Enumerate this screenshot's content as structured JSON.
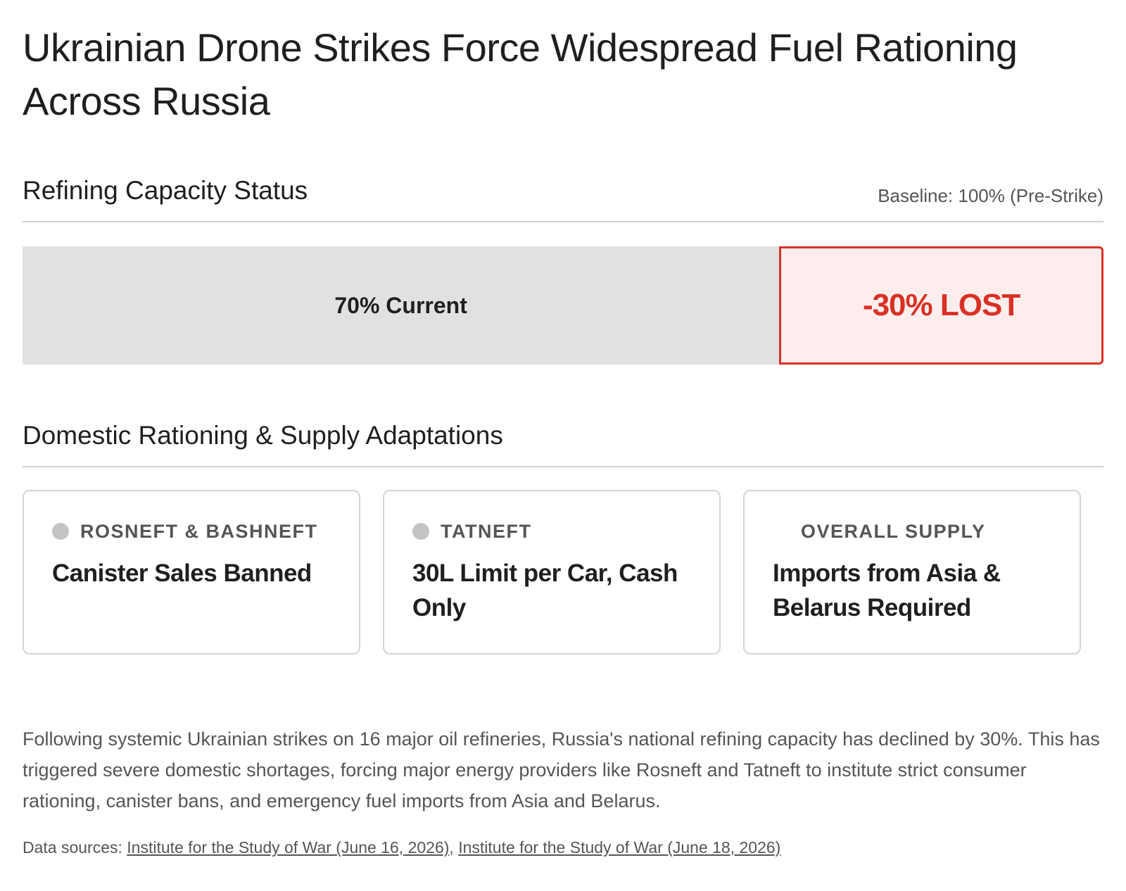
{
  "title": "Ukrainian Drone Strikes Force Widespread Fuel Rationing Across Russia",
  "capacity": {
    "heading": "Refining Capacity Status",
    "baseline": "Baseline: 100% (Pre-Strike)",
    "current_pct": 70,
    "lost_pct": 30,
    "current_label": "70% Current",
    "lost_label": "-30% LOST",
    "colors": {
      "current": "#e1e1e1",
      "lost_fill": "#fdeeed",
      "lost_accent": "#d93025"
    }
  },
  "rationing": {
    "heading": "Domestic Rationing & Supply Adaptations",
    "cards": [
      {
        "label": "ROSNEFT & BASHNEFT",
        "value": "Canister Sales Banned",
        "dot_icon": "status-dot-icon"
      },
      {
        "label": "TATNEFT",
        "value": "30L Limit per Car, Cash Only",
        "dot_icon": "status-dot-icon"
      },
      {
        "label": "OVERALL SUPPLY",
        "value": "Imports from Asia & Belarus Required",
        "dot_icon": ""
      }
    ]
  },
  "summary": "Following systemic Ukrainian strikes on 16 major oil refineries, Russia's national refining capacity has declined by 30%. This has triggered severe domestic shortages, forcing major energy providers like Rosneft and Tatneft to institute strict consumer rationing, canister bans, and emergency fuel imports from Asia and Belarus.",
  "sources": {
    "prefix": "Data sources: ",
    "links": [
      {
        "text": "Institute for the Study of War (June 16, 2026)"
      },
      {
        "text": "Institute for the Study of War (June 18, 2026)"
      }
    ],
    "separator": ", "
  }
}
